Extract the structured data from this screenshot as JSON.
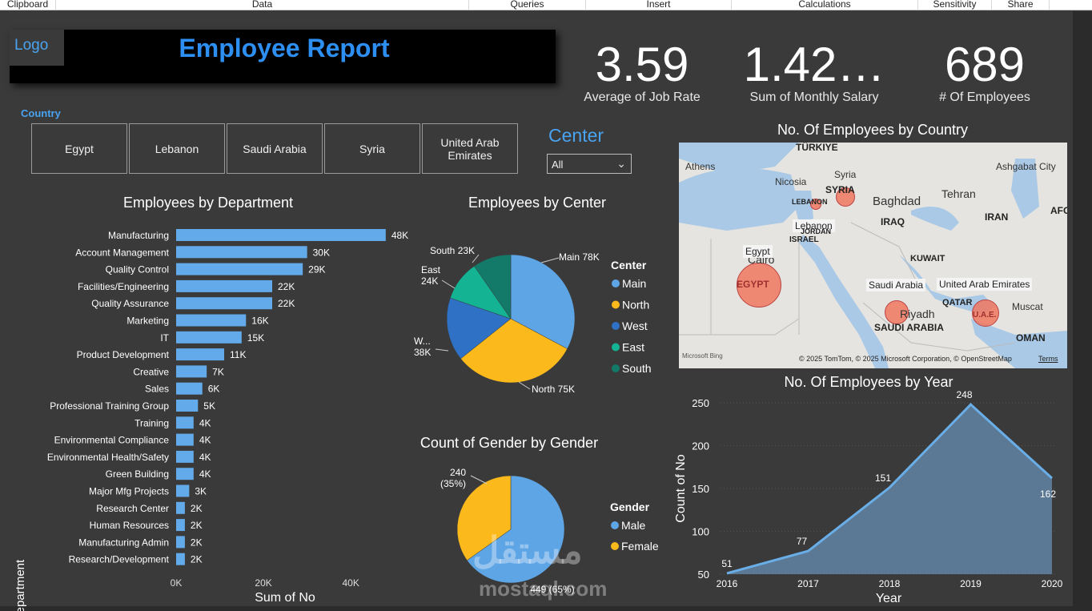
{
  "ribbon": [
    "Clipboard",
    "Data",
    "Queries",
    "Insert",
    "Calculations",
    "Sensitivity",
    "Share"
  ],
  "header": {
    "logo": "Logo",
    "title": "Employee Report"
  },
  "kpis": [
    {
      "value": "3.59",
      "label": "Average of Job Rate"
    },
    {
      "value": "1.42…",
      "label": "Sum of Monthly Salary"
    },
    {
      "value": "689",
      "label": "# Of Employees"
    }
  ],
  "country_slicer": {
    "label": "Country",
    "items": [
      "Egypt",
      "Lebanon",
      "Saudi Arabia",
      "Syria",
      "United Arab Emirates"
    ]
  },
  "center_slicer": {
    "label": "Center",
    "selected": "All"
  },
  "colors": {
    "accent": "#2d8ff2",
    "bar": "#62aaea",
    "main": "#5ea5e6",
    "north": "#fbb91c",
    "west": "#2e71c5",
    "east": "#13b394",
    "south": "#137a6a",
    "male": "#5ea5e6",
    "female": "#fbb91c",
    "area": "#5f7f9f"
  },
  "chart_data": [
    {
      "type": "bar",
      "title": "Employees by Department",
      "xlabel": "Sum of No",
      "ylabel": "Department",
      "xlim": [
        0,
        55000
      ],
      "xticks": [
        "0K",
        "20K",
        "40K"
      ],
      "categories": [
        "Manufacturing",
        "Account Management",
        "Quality Control",
        "Facilities/Engineering",
        "Quality Assurance",
        "Marketing",
        "IT",
        "Product Development",
        "Creative",
        "Sales",
        "Professional Training Group",
        "Training",
        "Environmental Compliance",
        "Environmental Health/Safety",
        "Green Building",
        "Major Mfg Projects",
        "Research Center",
        "Human Resources",
        "Manufacturing Admin",
        "Research/Development"
      ],
      "values": [
        48000,
        30000,
        29000,
        22000,
        22000,
        16000,
        15000,
        11000,
        7000,
        6000,
        5000,
        4000,
        4000,
        4000,
        4000,
        3000,
        2000,
        2000,
        2000,
        2000
      ],
      "labels": [
        "48K",
        "30K",
        "29K",
        "22K",
        "22K",
        "16K",
        "15K",
        "11K",
        "7K",
        "6K",
        "5K",
        "4K",
        "4K",
        "4K",
        "4K",
        "3K",
        "2K",
        "2K",
        "2K",
        "2K"
      ]
    },
    {
      "type": "pie",
      "title": "Employees by Center",
      "legend_title": "Center",
      "categories": [
        "Main",
        "North",
        "West",
        "East",
        "South"
      ],
      "values": [
        78,
        75,
        38,
        24,
        23
      ],
      "labels": [
        "Main 78K",
        "North 75K",
        "W... 38K",
        "East 24K",
        "South 23K"
      ]
    },
    {
      "type": "pie",
      "title": "Count of Gender by Gender",
      "legend_title": "Gender",
      "categories": [
        "Male",
        "Female"
      ],
      "values": [
        449,
        240
      ],
      "labels": [
        "449 (65%)",
        "240 (35%)"
      ]
    },
    {
      "type": "area",
      "title": "No. Of Employees by Year",
      "xlabel": "Year",
      "ylabel": "Count of No",
      "x": [
        "2016",
        "2017",
        "2018",
        "2019",
        "2020"
      ],
      "values": [
        51,
        77,
        151,
        248,
        162
      ],
      "ylim": [
        50,
        250
      ],
      "yticks": [
        "50",
        "100",
        "150",
        "200",
        "250"
      ]
    }
  ],
  "map": {
    "title": "No. Of Employees by Country",
    "place_labels": [
      "TÜRKIYE",
      "Athens",
      "Nicosia",
      "Syria",
      "SYRIA",
      "LEBANON",
      "Lebanon",
      "Baghdad",
      "IRAQ",
      "Tehran",
      "IRAN",
      "Ashgabat City",
      "AFG",
      "JORDAN",
      "ISRAEL",
      "Cairo",
      "Egypt",
      "EGYPT",
      "KUWAIT",
      "Saudi Arabia",
      "Riyadh",
      "SAUDI ARABIA",
      "QATAR",
      "United Arab Emirates",
      "Muscat",
      "U.A.E.",
      "OMAN"
    ],
    "attribution": "© 2025 TomTom, © 2025 Microsoft Corporation, © OpenStreetMap",
    "terms": "Terms",
    "bing": "Microsoft Bing"
  },
  "watermark": {
    "main": "مستقل",
    "sub": "mostaql.com"
  }
}
